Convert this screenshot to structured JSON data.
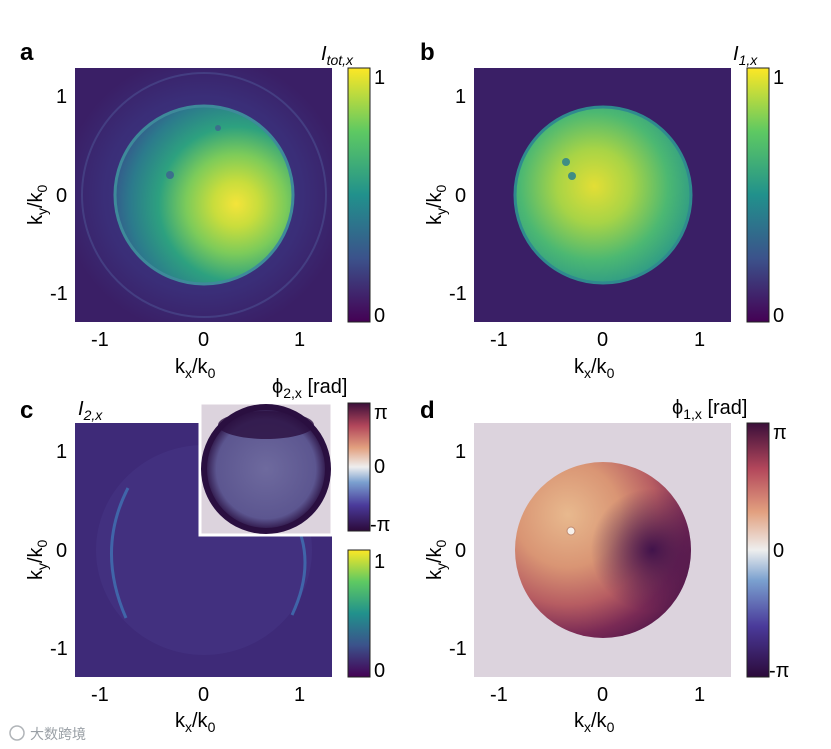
{
  "figure": {
    "panels": [
      {
        "letter": "a",
        "title_main": "I",
        "title_sub": "tot,x",
        "cbar_max": "1",
        "cbar_min": "0"
      },
      {
        "letter": "b",
        "title_main": "I",
        "title_sub": "1,x",
        "cbar_max": "1",
        "cbar_min": "0"
      },
      {
        "letter": "c",
        "title_main": "I",
        "title_sub": "2,x",
        "cbar_max": "1",
        "cbar_min": "0",
        "inset_title_main": "ϕ",
        "inset_title_sub": "2,x",
        "inset_title_unit": " [rad]",
        "inset_cbar_max": "π",
        "inset_cbar_mid": "0",
        "inset_cbar_min": "-π"
      },
      {
        "letter": "d",
        "title_main": "ϕ",
        "title_sub": "1,x",
        "title_unit": " [rad]",
        "cbar_max": "π",
        "cbar_mid": "0",
        "cbar_min": "-π"
      }
    ],
    "axes": {
      "x_label_main": "k",
      "x_label_sub": "x",
      "x_label_tail": "/k",
      "x_label_tail_sub": "0",
      "y_label_main": "k",
      "y_label_sub": "y",
      "y_label_tail": "/k",
      "y_label_tail_sub": "0",
      "x_ticks": [
        "-1",
        "0",
        "1"
      ],
      "y_ticks": [
        "1",
        "0",
        "-1"
      ]
    },
    "colors": {
      "viridis_dark": "#440154",
      "viridis_mid": "#21918c",
      "viridis_bright": "#fde725",
      "phase_bg": "#dcd3dd",
      "phase_dark": "#3b0f4a"
    },
    "watermark": "大数跨境"
  }
}
